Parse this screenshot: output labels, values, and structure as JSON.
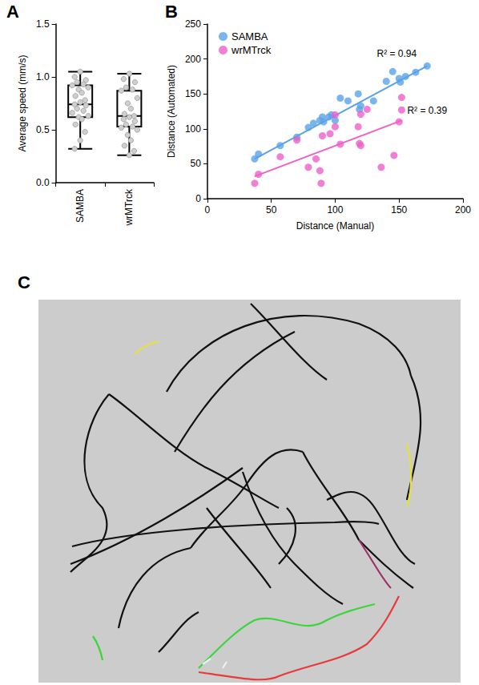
{
  "chart_data": [
    {
      "panel": "A",
      "type": "box",
      "categories": [
        "SAMBA",
        "wrMTrck"
      ],
      "y_label": "Average speed (mm/s)",
      "ylim": [
        0,
        1.5
      ],
      "yticks": [
        {
          "value": 0,
          "label": "0.0"
        },
        0.5,
        {
          "value": 1,
          "label": "1.0"
        },
        1.5
      ],
      "color": "#000000",
      "boxes": [
        [
          0.32,
          0.62,
          0.74,
          0.92,
          1.05
        ],
        [
          0.26,
          0.53,
          0.63,
          0.87,
          1.03
        ]
      ],
      "points": [
        [
          1.05,
          1.0,
          0.97,
          0.95,
          0.93,
          0.92,
          0.9,
          0.88,
          0.85,
          0.82,
          0.78,
          0.76,
          0.74,
          0.73,
          0.7,
          0.68,
          0.66,
          0.63,
          0.62,
          0.6,
          0.55,
          0.48,
          0.4,
          0.32
        ],
        [
          1.03,
          0.98,
          0.95,
          0.9,
          0.88,
          0.87,
          0.8,
          0.75,
          0.7,
          0.65,
          0.63,
          0.62,
          0.6,
          0.58,
          0.55,
          0.53,
          0.52,
          0.5,
          0.45,
          0.4,
          0.35,
          0.3,
          0.26
        ]
      ]
    },
    {
      "panel": "B",
      "type": "scatter",
      "x_label": "Distance (Manual)",
      "y_label": "Distance (Automated)",
      "xlim": [
        0,
        200
      ],
      "xticks": [
        0,
        50,
        100,
        150,
        200
      ],
      "ylim": [
        0,
        250
      ],
      "yticks": [
        0,
        50,
        100,
        150,
        200,
        250
      ],
      "legend": "top-left",
      "series": [
        {
          "name": "SAMBA",
          "color": "#5aa2e8",
          "x": [
            37,
            40,
            57,
            70,
            79,
            83,
            88,
            90,
            91,
            95,
            97,
            100,
            104,
            110,
            118,
            119,
            120,
            130,
            140,
            145,
            150,
            151,
            155,
            163,
            172
          ],
          "values": [
            57,
            64,
            76,
            88,
            102,
            108,
            112,
            117,
            110,
            117,
            120,
            112,
            144,
            140,
            150,
            128,
            133,
            140,
            168,
            182,
            172,
            167,
            175,
            181,
            190
          ],
          "fit": {
            "x": [
              37,
              172
            ],
            "y": [
              57,
              190
            ]
          },
          "annotation": "R² = 0.94"
        },
        {
          "name": "wrMTrck",
          "color": "#ee5fc8",
          "x": [
            37,
            40,
            57,
            70,
            79,
            85,
            88,
            89,
            90,
            96,
            100,
            100,
            104,
            118,
            119,
            120,
            120,
            125,
            136,
            146,
            150,
            152,
            152
          ],
          "values": [
            22,
            35,
            60,
            84,
            45,
            57,
            40,
            22,
            90,
            93,
            103,
            120,
            78,
            103,
            79,
            76,
            121,
            128,
            45,
            62,
            110,
            145,
            127
          ],
          "fit": {
            "x": [
              37,
              152
            ],
            "y": [
              32,
              112
            ]
          },
          "annotation": "R² = 0.39"
        }
      ]
    }
  ],
  "image": {
    "panel": "C"
  }
}
